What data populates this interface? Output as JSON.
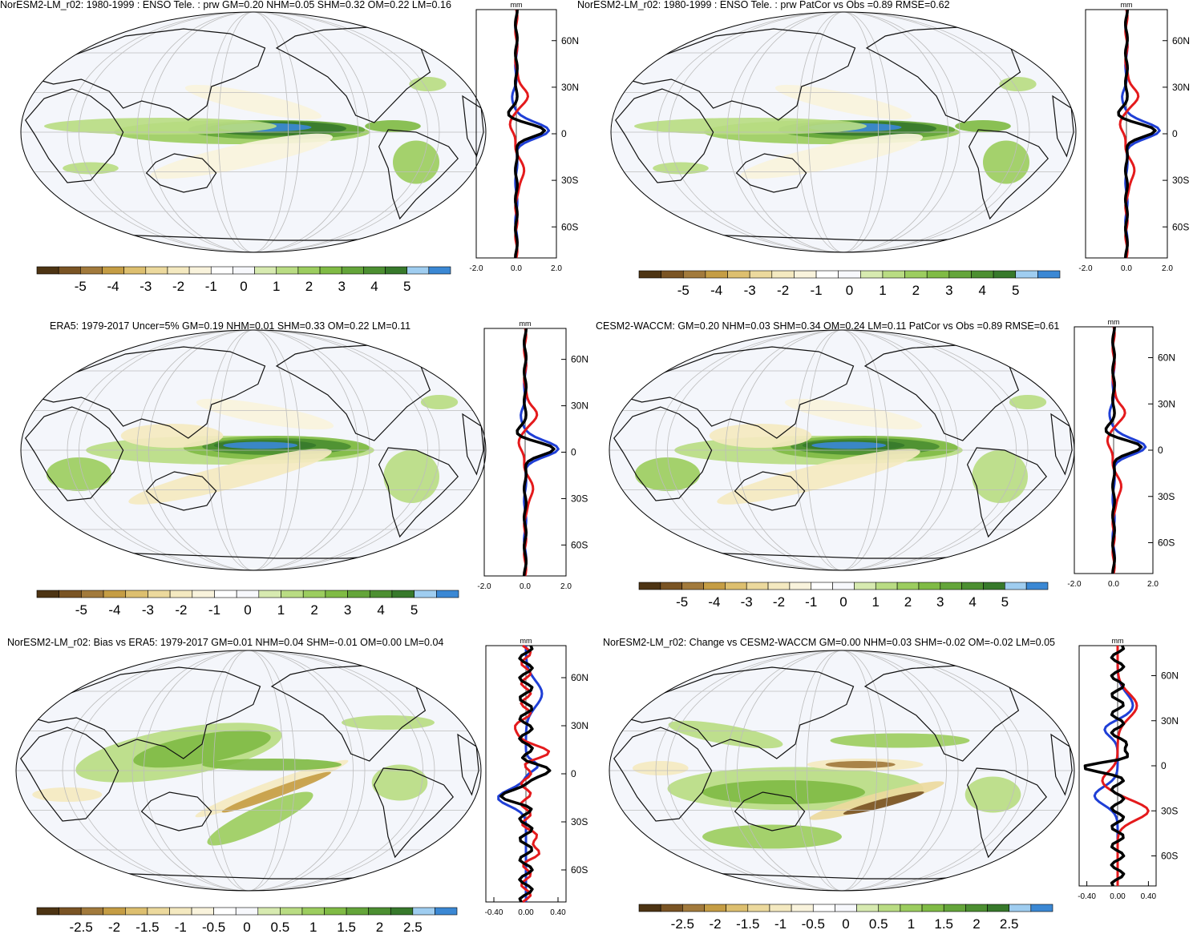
{
  "figure": {
    "zonal_unit": "mm",
    "lat_ticks": [
      "60N",
      "30N",
      "0",
      "30S",
      "60S"
    ],
    "palette": [
      "#4d3413",
      "#7a5424",
      "#a27a3c",
      "#c59d44",
      "#ddbf6f",
      "#ecd99d",
      "#f4e9c0",
      "#f9f3dc",
      "#ffffff",
      "#f7f8fc",
      "#d7eab0",
      "#b9dc83",
      "#9ccd5f",
      "#80bb45",
      "#64a53a",
      "#4c8f31",
      "#37792b",
      "#9fcdf0",
      "#3b88d4"
    ],
    "colors": {
      "ocean": "#f4f6fb",
      "grid": "#bdbdbd",
      "coast": "#111111",
      "series_black": "#000000",
      "series_red": "#e41a1c",
      "series_blue": "#1f3fd6"
    }
  },
  "chart_data": [
    {
      "type": "map",
      "title": "NorESM2-LM_r02: 1980-1999 : ENSO Tele. : prw GM=0.20 NHM=0.05 SHM=0.32 OM=0.22 LM=0.16",
      "colorbar_labels": [
        "-5",
        "-4",
        "-3",
        "-2",
        "-1",
        "0",
        "1",
        "2",
        "3",
        "4",
        "5"
      ],
      "zonal_xticks": [
        "-2.0",
        "0.0",
        "2.0"
      ],
      "zonal_xlim": [
        -2,
        2
      ],
      "pattern": "enso"
    },
    {
      "type": "map",
      "title": "NorESM2-LM_r02: 1980-1999 : ENSO Tele. : prw PatCor vs Obs =0.89 RMSE=0.62",
      "colorbar_labels": [
        "-5",
        "-4",
        "-3",
        "-2",
        "-1",
        "0",
        "1",
        "2",
        "3",
        "4",
        "5"
      ],
      "zonal_xticks": [
        "-2.0",
        "0.0",
        "2.0"
      ],
      "zonal_xlim": [
        -2,
        2
      ],
      "pattern": "enso"
    },
    {
      "type": "map",
      "title": "ERA5: 1979-2017 Uncer=5% GM=0.19 NHM=0.01 SHM=0.33 OM=0.22 LM=0.11",
      "colorbar_labels": [
        "-5",
        "-4",
        "-3",
        "-2",
        "-1",
        "0",
        "1",
        "2",
        "3",
        "4",
        "5"
      ],
      "zonal_xticks": [
        "-2.0",
        "0.0",
        "2.0"
      ],
      "zonal_xlim": [
        -2,
        2
      ],
      "pattern": "enso2"
    },
    {
      "type": "map",
      "title": "CESM2-WACCM: GM=0.20 NHM=0.03 SHM=0.34 OM=0.24 LM=0.11 PatCor vs Obs =0.89 RMSE=0.61",
      "colorbar_labels": [
        "-5",
        "-4",
        "-3",
        "-2",
        "-1",
        "0",
        "1",
        "2",
        "3",
        "4",
        "5"
      ],
      "zonal_xticks": [
        "-2.0",
        "0.0",
        "2.0"
      ],
      "zonal_xlim": [
        -2,
        2
      ],
      "pattern": "enso2"
    },
    {
      "type": "map",
      "title": "NorESM2-LM_r02: Bias vs ERA5: 1979-2017 GM=0.01 NHM=0.04 SHM=-0.01 OM=0.00 LM=0.04",
      "colorbar_labels": [
        "-2.5",
        "-2",
        "-1.5",
        "-1",
        "-0.5",
        "0",
        "0.5",
        "1",
        "1.5",
        "2",
        "2.5"
      ],
      "zonal_xticks": [
        "-0.40",
        "0.00",
        "0.40"
      ],
      "zonal_xlim": [
        -0.5,
        0.5
      ],
      "pattern": "bias"
    },
    {
      "type": "map",
      "title": "NorESM2-LM_r02: Change vs CESM2-WACCM GM=0.00 NHM=0.03 SHM=-0.02 OM=-0.02 LM=0.05",
      "colorbar_labels": [
        "-2.5",
        "-2",
        "-1.5",
        "-1",
        "-0.5",
        "0",
        "0.5",
        "1",
        "1.5",
        "2",
        "2.5"
      ],
      "zonal_xticks": [
        "-0.40",
        "0.00",
        "0.40"
      ],
      "zonal_xlim": [
        -0.5,
        0.5
      ],
      "pattern": "change"
    }
  ]
}
